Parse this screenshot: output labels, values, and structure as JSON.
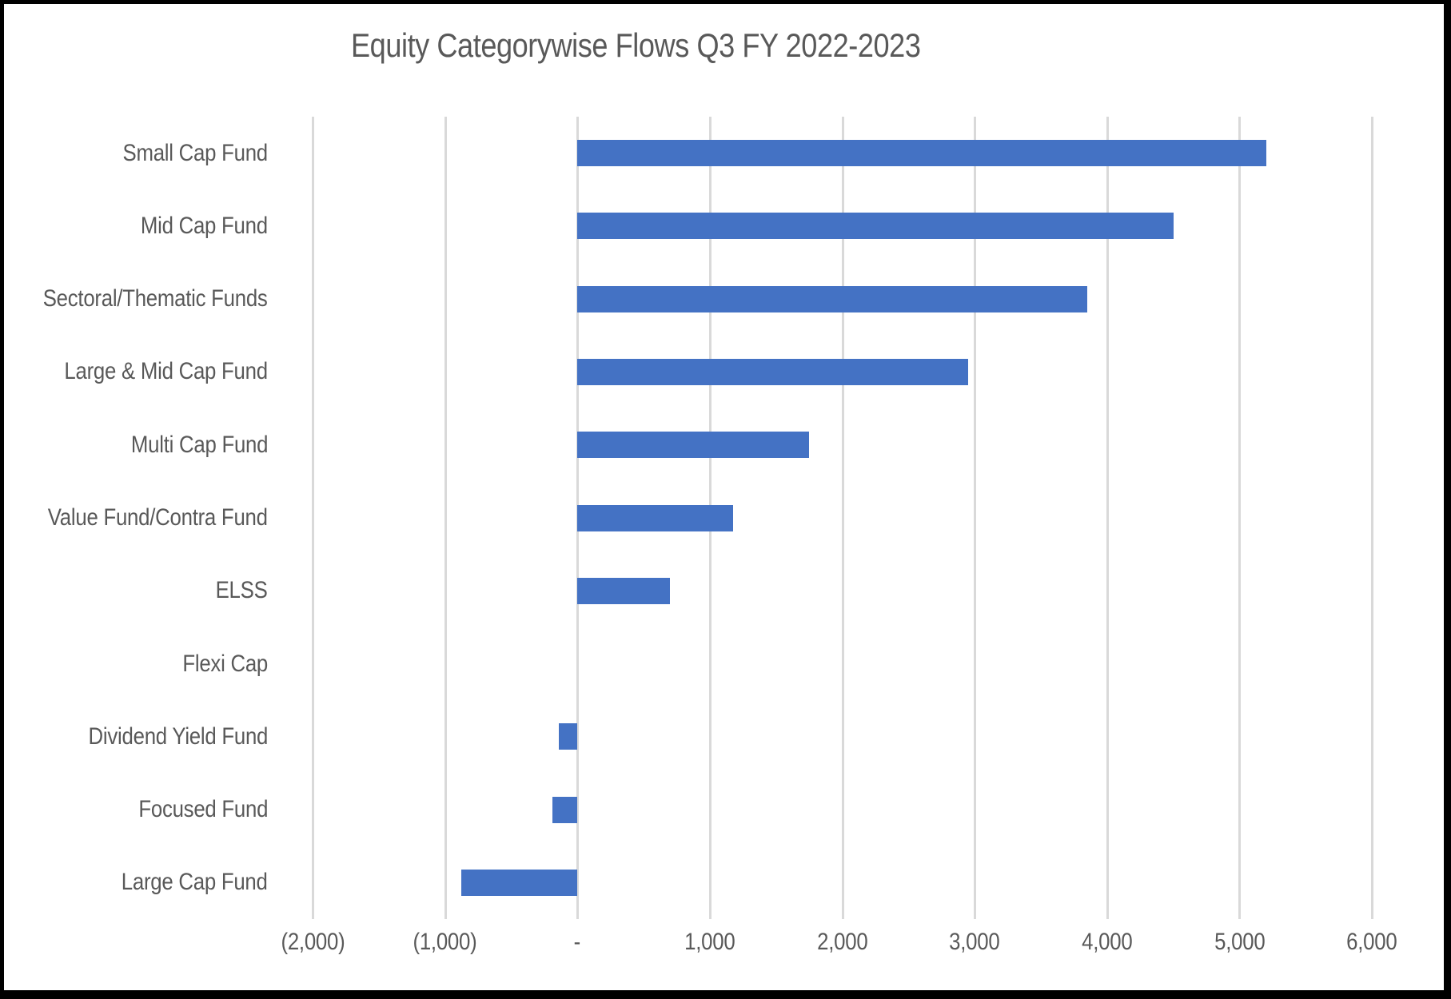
{
  "title": "Equity Categorywise Flows Q3 FY 2022-2023",
  "colors": {
    "bar": "#4472C4",
    "gridline": "#D9D9D9",
    "text": "#595959",
    "frame": "#000000",
    "background": "#FFFFFF"
  },
  "chart_data": {
    "type": "bar",
    "orientation": "horizontal",
    "title": "Equity Categorywise Flows Q3 FY 2022-2023",
    "xlabel": "",
    "ylabel": "",
    "categories": [
      "Small Cap Fund",
      "Mid Cap Fund",
      "Sectoral/Thematic Funds",
      "Large & Mid Cap Fund",
      "Multi Cap Fund",
      "Value Fund/Contra Fund",
      "ELSS",
      "Flexi Cap",
      "Dividend Yield Fund",
      "Focused Fund",
      "Large Cap Fund"
    ],
    "values": [
      5200,
      4500,
      3850,
      2950,
      1750,
      1175,
      700,
      0,
      -140,
      -190,
      -880
    ],
    "xlim": [
      -2000,
      6000
    ],
    "x_ticks": [
      -2000,
      -1000,
      0,
      1000,
      2000,
      3000,
      4000,
      5000,
      6000
    ],
    "x_tick_labels": [
      "(2,000)",
      "(1,000)",
      "-",
      "1,000",
      "2,000",
      "3,000",
      "4,000",
      "5,000",
      "6,000"
    ],
    "grid": "vertical-only",
    "legend": "none",
    "negative_number_format": "parentheses"
  }
}
